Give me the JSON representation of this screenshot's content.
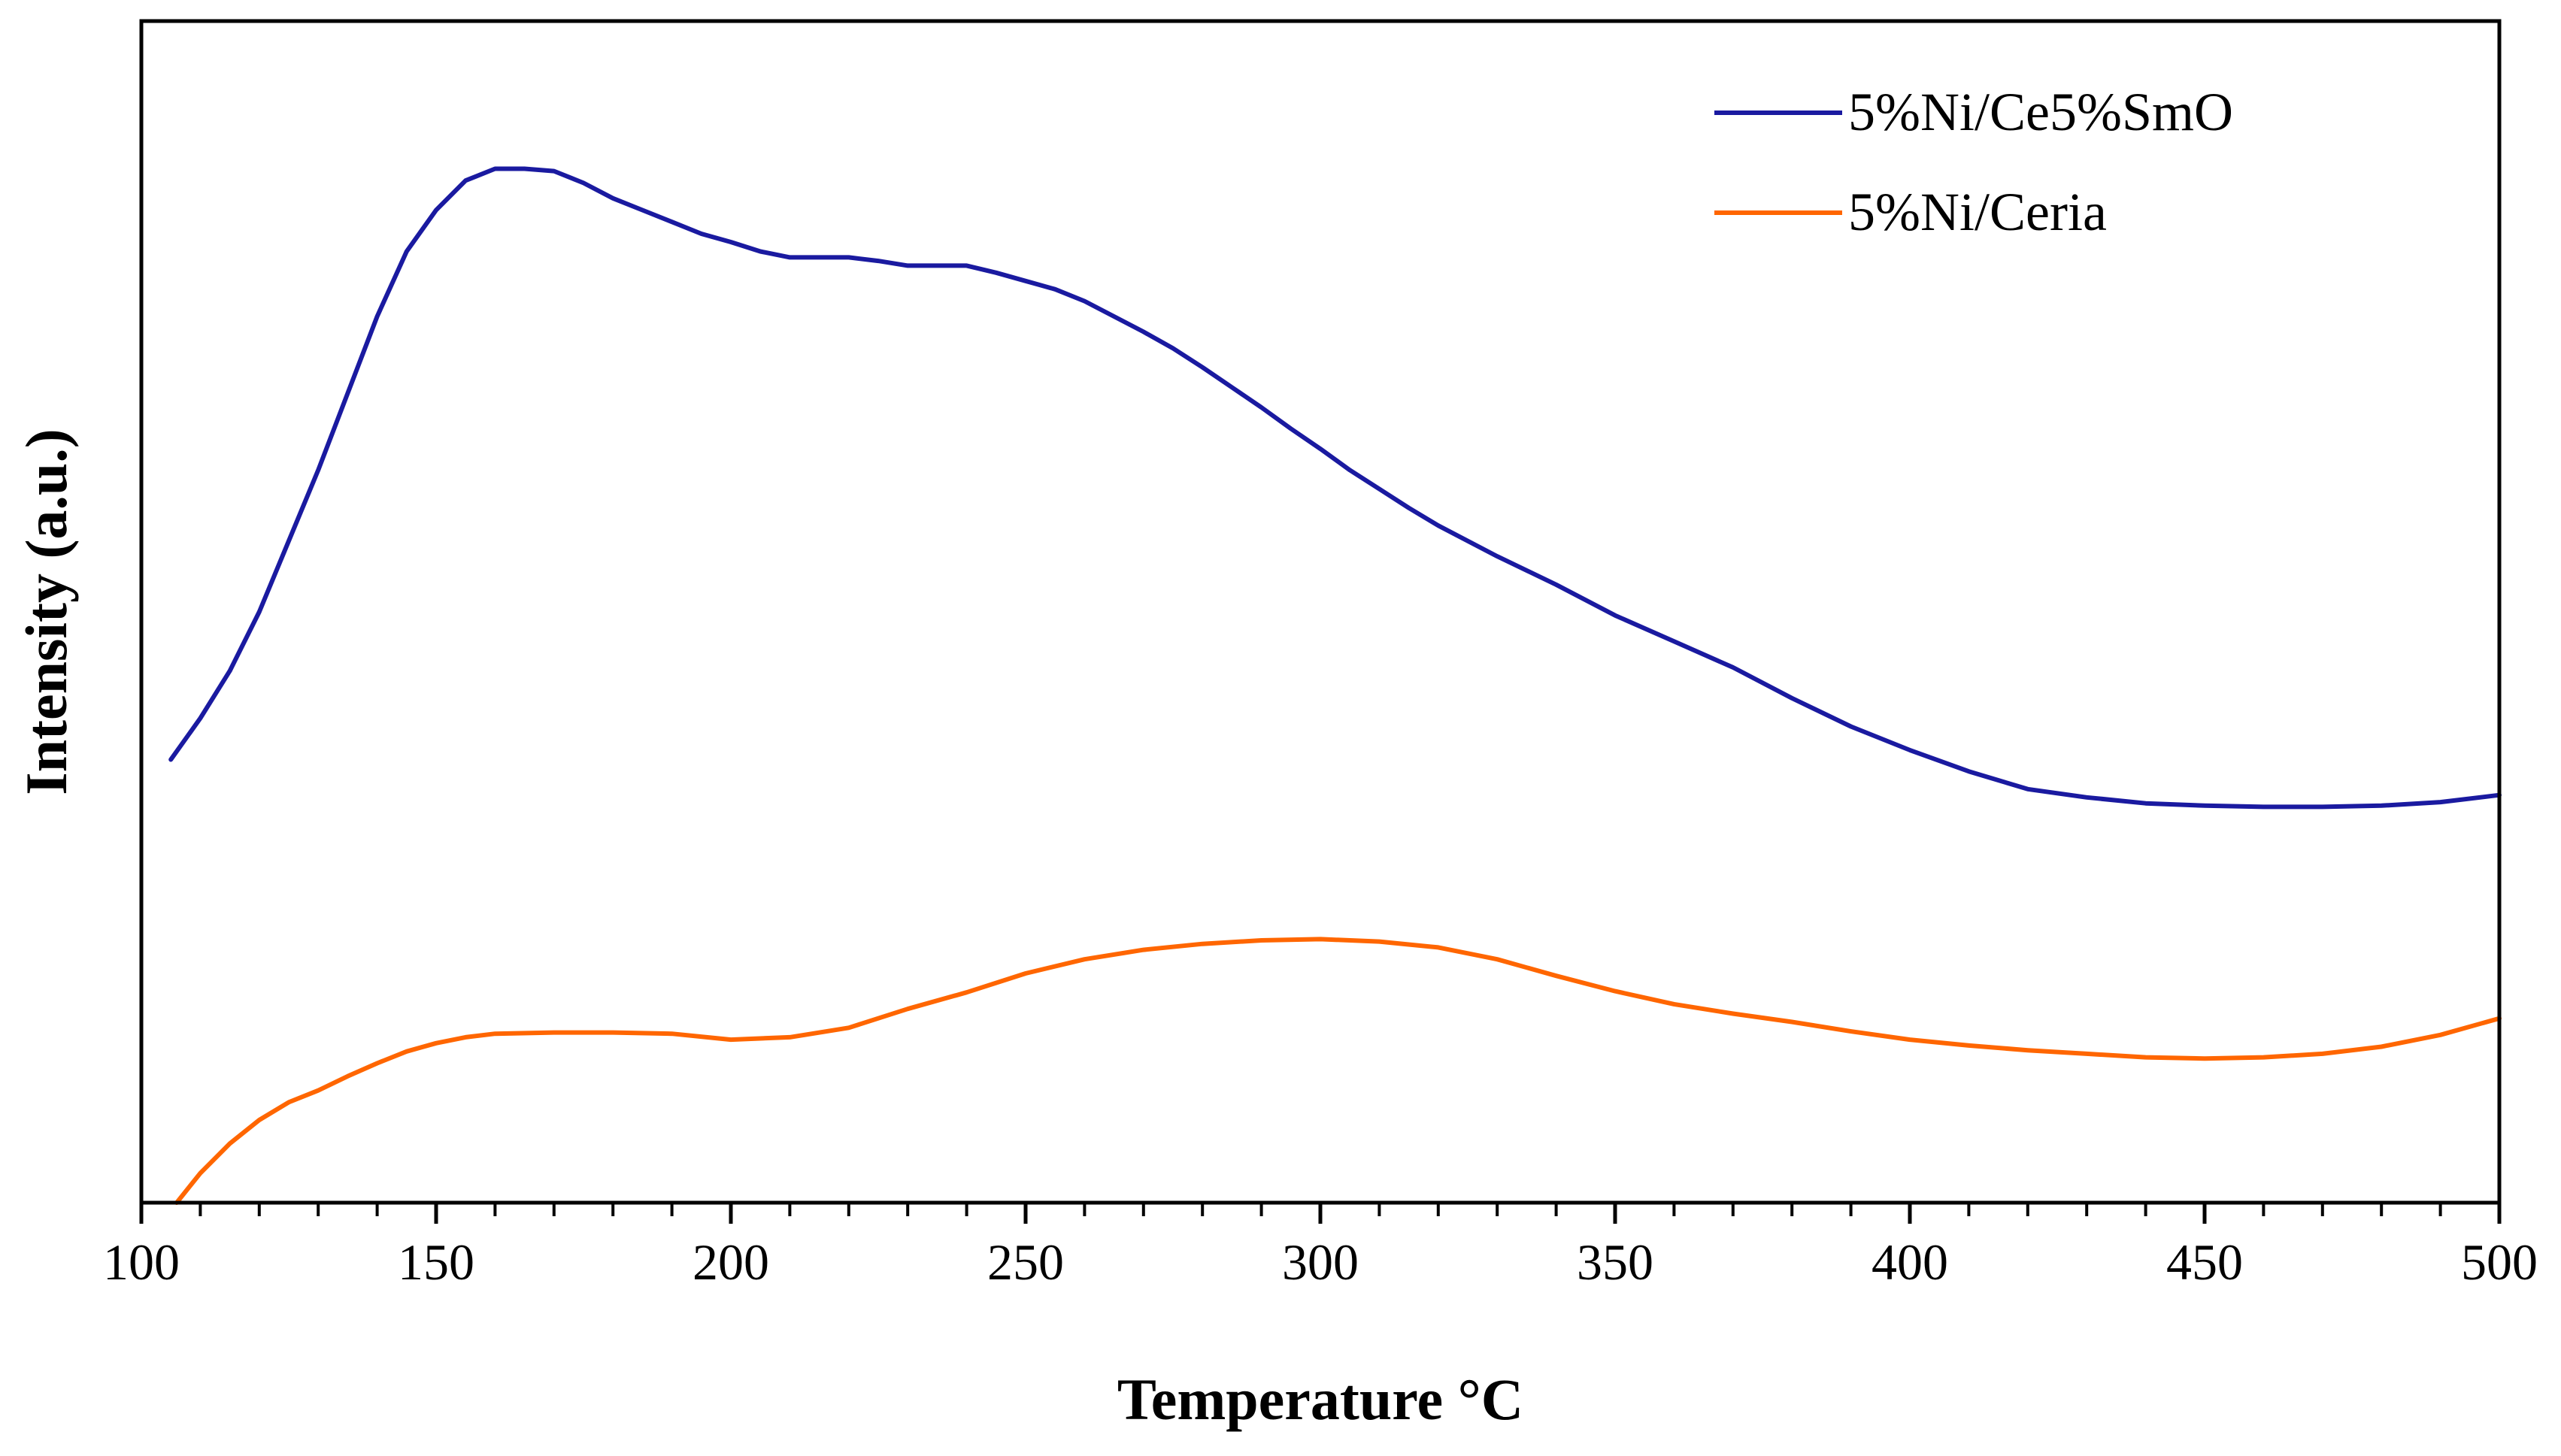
{
  "chart_data": {
    "type": "line",
    "title": "",
    "xlabel": "Temperature °C",
    "ylabel": "Intensity (a.u.)",
    "xlim": [
      100,
      500
    ],
    "ylim": [
      0,
      100
    ],
    "x_ticks": [
      100,
      150,
      200,
      250,
      300,
      350,
      400,
      450,
      500
    ],
    "x_tick_labels": [
      "100",
      "150",
      "200",
      "250",
      "300",
      "350",
      "400",
      "450",
      "500"
    ],
    "y_ticks_shown": false,
    "grid": false,
    "legend_position": "top-right",
    "series": [
      {
        "name": "5%Ni/Ce5%SmO",
        "color": "#1a1aa0",
        "x": [
          105,
          110,
          115,
          120,
          125,
          130,
          135,
          140,
          145,
          150,
          155,
          160,
          165,
          170,
          175,
          180,
          185,
          190,
          195,
          200,
          205,
          210,
          215,
          220,
          225,
          230,
          235,
          240,
          245,
          250,
          255,
          260,
          265,
          270,
          275,
          280,
          285,
          290,
          295,
          300,
          305,
          310,
          315,
          320,
          330,
          340,
          350,
          360,
          370,
          380,
          390,
          400,
          410,
          420,
          430,
          440,
          450,
          460,
          470,
          480,
          490,
          500
        ],
        "y": [
          37.5,
          41,
          45,
          50,
          56,
          62,
          68.5,
          75,
          80.5,
          84,
          86.5,
          87.5,
          87.5,
          87.3,
          86.3,
          85,
          84,
          83,
          82,
          81.3,
          80.5,
          80,
          80,
          80,
          79.7,
          79.3,
          79.3,
          79.3,
          78.7,
          78,
          77.3,
          76.3,
          75,
          73.7,
          72.3,
          70.7,
          69,
          67.3,
          65.5,
          63.8,
          62,
          60.4,
          58.8,
          57.3,
          54.7,
          52.3,
          49.7,
          47.5,
          45.3,
          42.7,
          40.3,
          38.3,
          36.5,
          35,
          34.3,
          33.8,
          33.6,
          33.5,
          33.5,
          33.6,
          33.9,
          34.5
        ]
      },
      {
        "name": "5%Ni/Ceria",
        "color": "#ff6600",
        "x": [
          106,
          110,
          115,
          120,
          125,
          130,
          135,
          140,
          145,
          150,
          155,
          160,
          170,
          180,
          190,
          200,
          210,
          220,
          230,
          240,
          250,
          260,
          270,
          280,
          290,
          300,
          310,
          320,
          330,
          340,
          350,
          360,
          370,
          380,
          390,
          400,
          410,
          420,
          430,
          440,
          450,
          460,
          470,
          480,
          490,
          500
        ],
        "y": [
          0,
          2.5,
          5,
          7,
          8.5,
          9.5,
          10.7,
          11.8,
          12.8,
          13.5,
          14,
          14.3,
          14.4,
          14.4,
          14.3,
          13.8,
          14,
          14.8,
          16.4,
          17.8,
          19.4,
          20.6,
          21.4,
          21.9,
          22.2,
          22.3,
          22.1,
          21.6,
          20.6,
          19.2,
          17.9,
          16.8,
          16,
          15.3,
          14.5,
          13.8,
          13.3,
          12.9,
          12.6,
          12.3,
          12.2,
          12.3,
          12.6,
          13.2,
          14.2,
          15.6
        ]
      }
    ]
  }
}
